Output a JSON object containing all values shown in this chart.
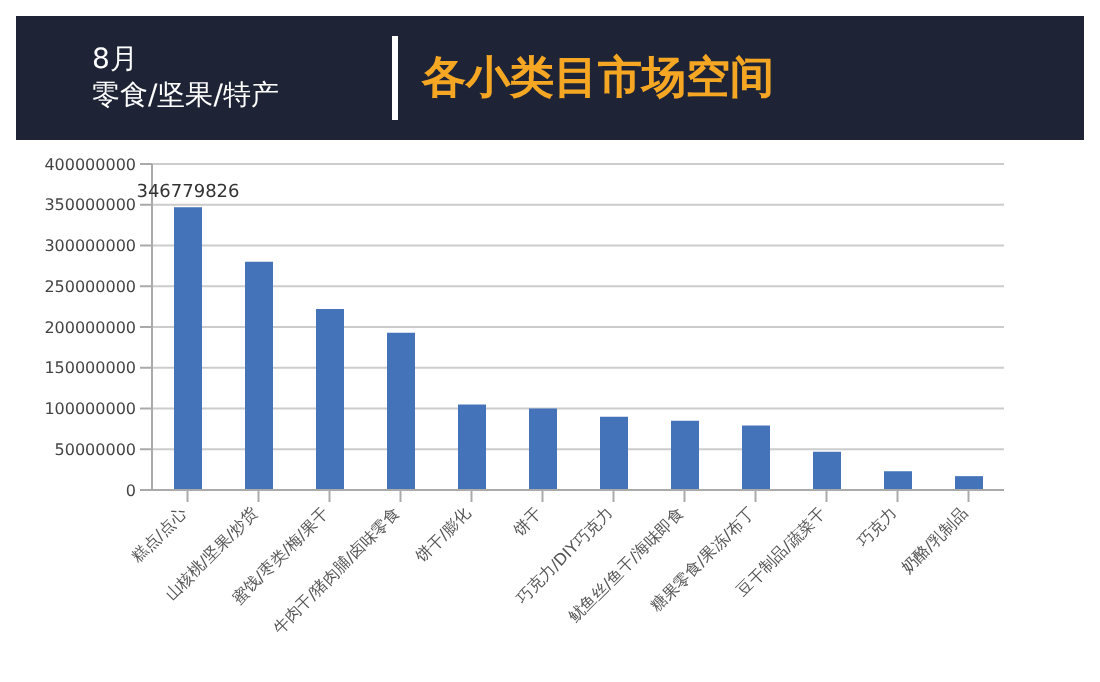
{
  "chart_data": {
    "type": "bar",
    "title": "各小类目市场空间",
    "subtitle": "零食/坚果/特产",
    "annotations": [
      "8月"
    ],
    "categories": [
      "糕点/点心",
      "山核桃/坚果/炒货",
      "蜜饯/枣类/梅/果干",
      "牛肉干/猪肉脯/卤味零食",
      "饼干/膨化",
      "饼干",
      "巧克力/DIY巧克力",
      "鱿鱼丝/鱼干/海味即食",
      "糖果零食/果冻/布丁",
      "豆干制品/蔬菜干",
      "巧克力",
      "奶酪/乳制品"
    ],
    "values": [
      346779826,
      280000000,
      222000000,
      193000000,
      105000000,
      100000000,
      90000000,
      85000000,
      79000000,
      47000000,
      23000000,
      17000000
    ],
    "value_labels": [
      "346779826",
      null,
      null,
      null,
      null,
      null,
      null,
      null,
      null,
      null,
      null,
      null
    ],
    "color": "#4473b9",
    "ylim": [
      0,
      400000000
    ],
    "yticks": [
      0,
      50000000,
      100000000,
      150000000,
      200000000,
      250000000,
      300000000,
      350000000,
      400000000
    ],
    "grid": "y"
  }
}
